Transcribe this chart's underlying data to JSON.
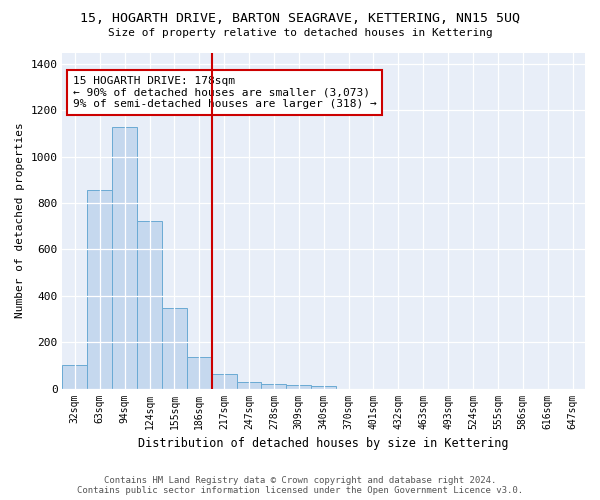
{
  "title": "15, HOGARTH DRIVE, BARTON SEAGRAVE, KETTERING, NN15 5UQ",
  "subtitle": "Size of property relative to detached houses in Kettering",
  "xlabel": "Distribution of detached houses by size in Kettering",
  "ylabel": "Number of detached properties",
  "categories": [
    "32sqm",
    "63sqm",
    "94sqm",
    "124sqm",
    "155sqm",
    "186sqm",
    "217sqm",
    "247sqm",
    "278sqm",
    "309sqm",
    "340sqm",
    "370sqm",
    "401sqm",
    "432sqm",
    "463sqm",
    "493sqm",
    "524sqm",
    "555sqm",
    "586sqm",
    "616sqm",
    "647sqm"
  ],
  "values": [
    103,
    857,
    1128,
    722,
    347,
    137,
    62,
    30,
    20,
    17,
    12,
    0,
    0,
    0,
    0,
    0,
    0,
    0,
    0,
    0,
    0
  ],
  "bar_color": "#c5d8ee",
  "bar_edge_color": "#6aaad4",
  "bar_width": 1.0,
  "vline_x": 5.5,
  "vline_color": "#cc0000",
  "ylim": [
    0,
    1450
  ],
  "yticks": [
    0,
    200,
    400,
    600,
    800,
    1000,
    1200,
    1400
  ],
  "annotation_text": "15 HOGARTH DRIVE: 178sqm\n← 90% of detached houses are smaller (3,073)\n9% of semi-detached houses are larger (318) →",
  "annotation_box_color": "#cc0000",
  "bg_color": "#e8eef8",
  "footer_line1": "Contains HM Land Registry data © Crown copyright and database right 2024.",
  "footer_line2": "Contains public sector information licensed under the Open Government Licence v3.0."
}
